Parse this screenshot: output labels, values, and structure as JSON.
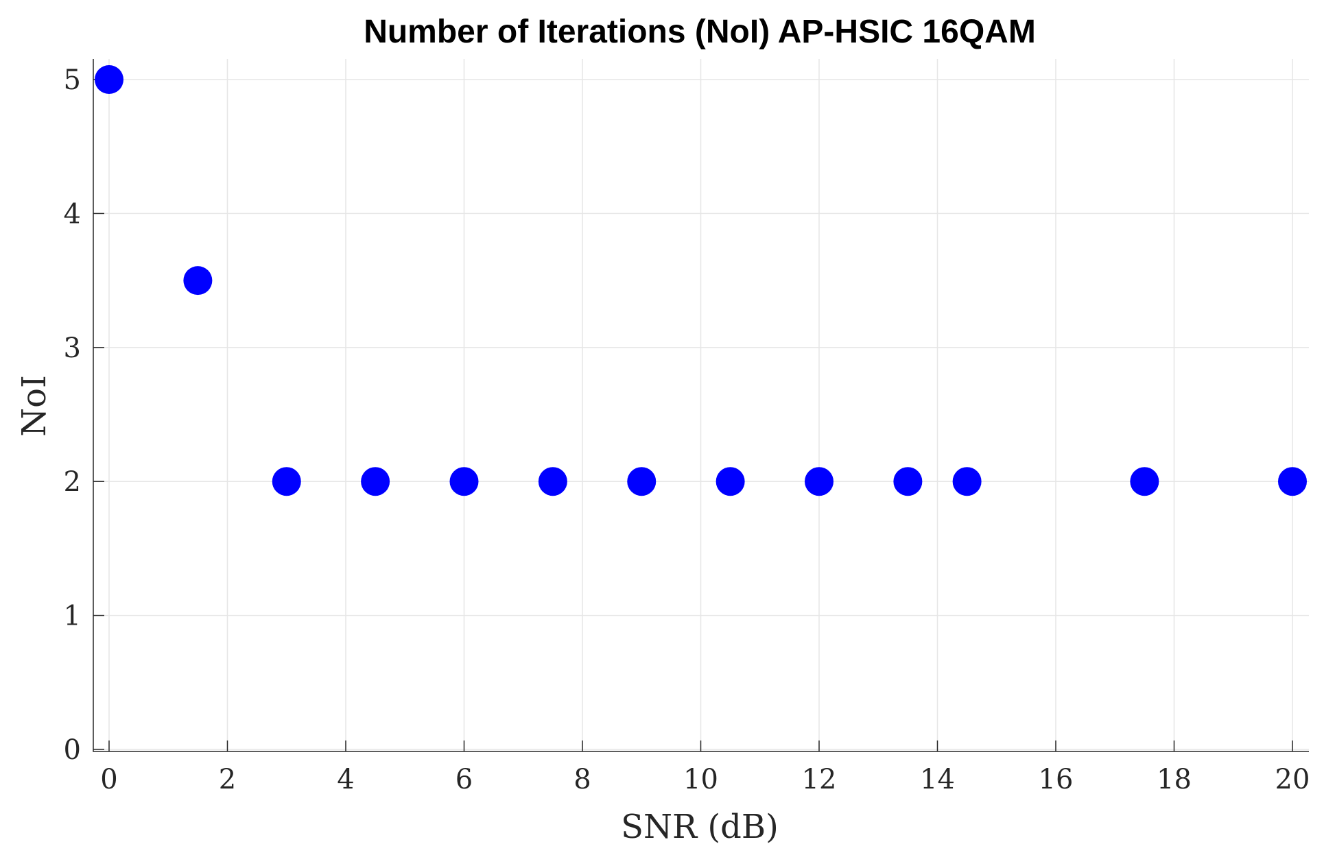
{
  "chart_data": {
    "type": "scatter",
    "title": "Number of Iterations (NoI) AP-HSIC 16QAM",
    "xlabel": "SNR (dB)",
    "ylabel": "NoI",
    "xlim": [
      0,
      20
    ],
    "ylim": [
      0,
      5
    ],
    "xticks": [
      0,
      2,
      4,
      6,
      8,
      10,
      12,
      14,
      16,
      18,
      20
    ],
    "yticks": [
      0,
      1,
      2,
      3,
      4,
      5
    ],
    "grid": true,
    "marker_color": "#0000ff",
    "x": [
      0,
      1.5,
      3,
      4.5,
      6,
      7.5,
      9,
      10.5,
      12,
      13.5,
      14.5,
      17.5,
      20
    ],
    "y": [
      5,
      3.5,
      2,
      2,
      2,
      2,
      2,
      2,
      2,
      2,
      2,
      2,
      2
    ]
  }
}
